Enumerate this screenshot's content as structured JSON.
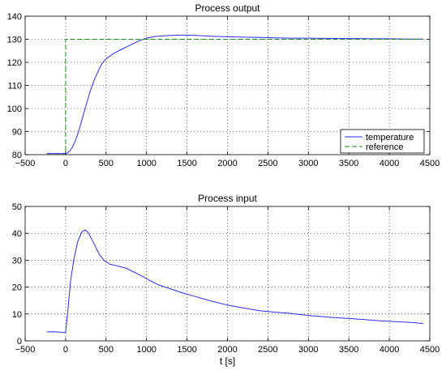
{
  "chart_data": [
    {
      "type": "line",
      "title": "Process output",
      "xlabel": "",
      "ylabel": "",
      "xlim": [
        -500,
        4500
      ],
      "ylim": [
        80,
        140
      ],
      "xticks": [
        -500,
        0,
        500,
        1000,
        1500,
        2000,
        2500,
        3000,
        3500,
        4000,
        4500
      ],
      "yticks": [
        80,
        90,
        100,
        110,
        120,
        130,
        140
      ],
      "grid": true,
      "legend": {
        "placement": "bottom-right"
      },
      "series": [
        {
          "name": "temperature",
          "color": "#2a2aff",
          "style": "solid",
          "x": [
            -230,
            -100,
            -20,
            0,
            20,
            50,
            80,
            120,
            160,
            200,
            250,
            300,
            350,
            400,
            450,
            500,
            600,
            700,
            800,
            900,
            1000,
            1100,
            1200,
            1300,
            1400,
            1500,
            1600,
            1700,
            1800,
            2000,
            2200,
            2400,
            2600,
            2800,
            3000,
            3200,
            3400,
            3600,
            3800,
            4000,
            4200,
            4420
          ],
          "y": [
            80.5,
            80.5,
            80.5,
            80.5,
            80.7,
            81.5,
            83,
            86,
            90,
            95,
            101,
            107,
            112,
            116,
            119.5,
            121.5,
            124,
            125.8,
            127.5,
            129.2,
            130.5,
            131.2,
            131.5,
            131.7,
            131.8,
            131.8,
            131.7,
            131.5,
            131.3,
            131.1,
            130.9,
            130.8,
            130.6,
            130.5,
            130.5,
            130.4,
            130.3,
            130.3,
            130.2,
            130.2,
            130.1,
            130.1
          ]
        },
        {
          "name": "reference",
          "color": "#1a8a1a",
          "style": "dashed",
          "x": [
            -230,
            0,
            0,
            4420
          ],
          "y": [
            80,
            80,
            130,
            130
          ]
        }
      ]
    },
    {
      "type": "line",
      "title": "Process input",
      "xlabel": "t [s]",
      "ylabel": "",
      "xlim": [
        -500,
        4500
      ],
      "ylim": [
        0,
        50
      ],
      "xticks": [
        -500,
        0,
        500,
        1000,
        1500,
        2000,
        2500,
        3000,
        3500,
        4000,
        4500
      ],
      "yticks": [
        0,
        10,
        20,
        30,
        40,
        50
      ],
      "grid": true,
      "series": [
        {
          "color": "#2a2aff",
          "style": "solid",
          "x": [
            -230,
            -150,
            -50,
            0,
            30,
            60,
            100,
            150,
            200,
            240,
            280,
            320,
            370,
            420,
            480,
            550,
            650,
            750,
            850,
            950,
            1050,
            1150,
            1300,
            1450,
            1600,
            1800,
            2000,
            2200,
            2400,
            2600,
            2750,
            2900,
            3100,
            3300,
            3500,
            3700,
            3900,
            4100,
            4300,
            4420
          ],
          "y": [
            3.3,
            3.4,
            3.2,
            3,
            12,
            22,
            30,
            37,
            40.5,
            41.3,
            40.3,
            38,
            35,
            32,
            29.8,
            28.5,
            27.8,
            27,
            25.5,
            24,
            22.3,
            20.8,
            19.3,
            17.8,
            16.5,
            14.8,
            13.3,
            12.2,
            11.2,
            10.6,
            10.3,
            9.8,
            9.2,
            8.7,
            8.3,
            7.9,
            7.4,
            7.1,
            6.8,
            6.4
          ]
        }
      ]
    }
  ]
}
